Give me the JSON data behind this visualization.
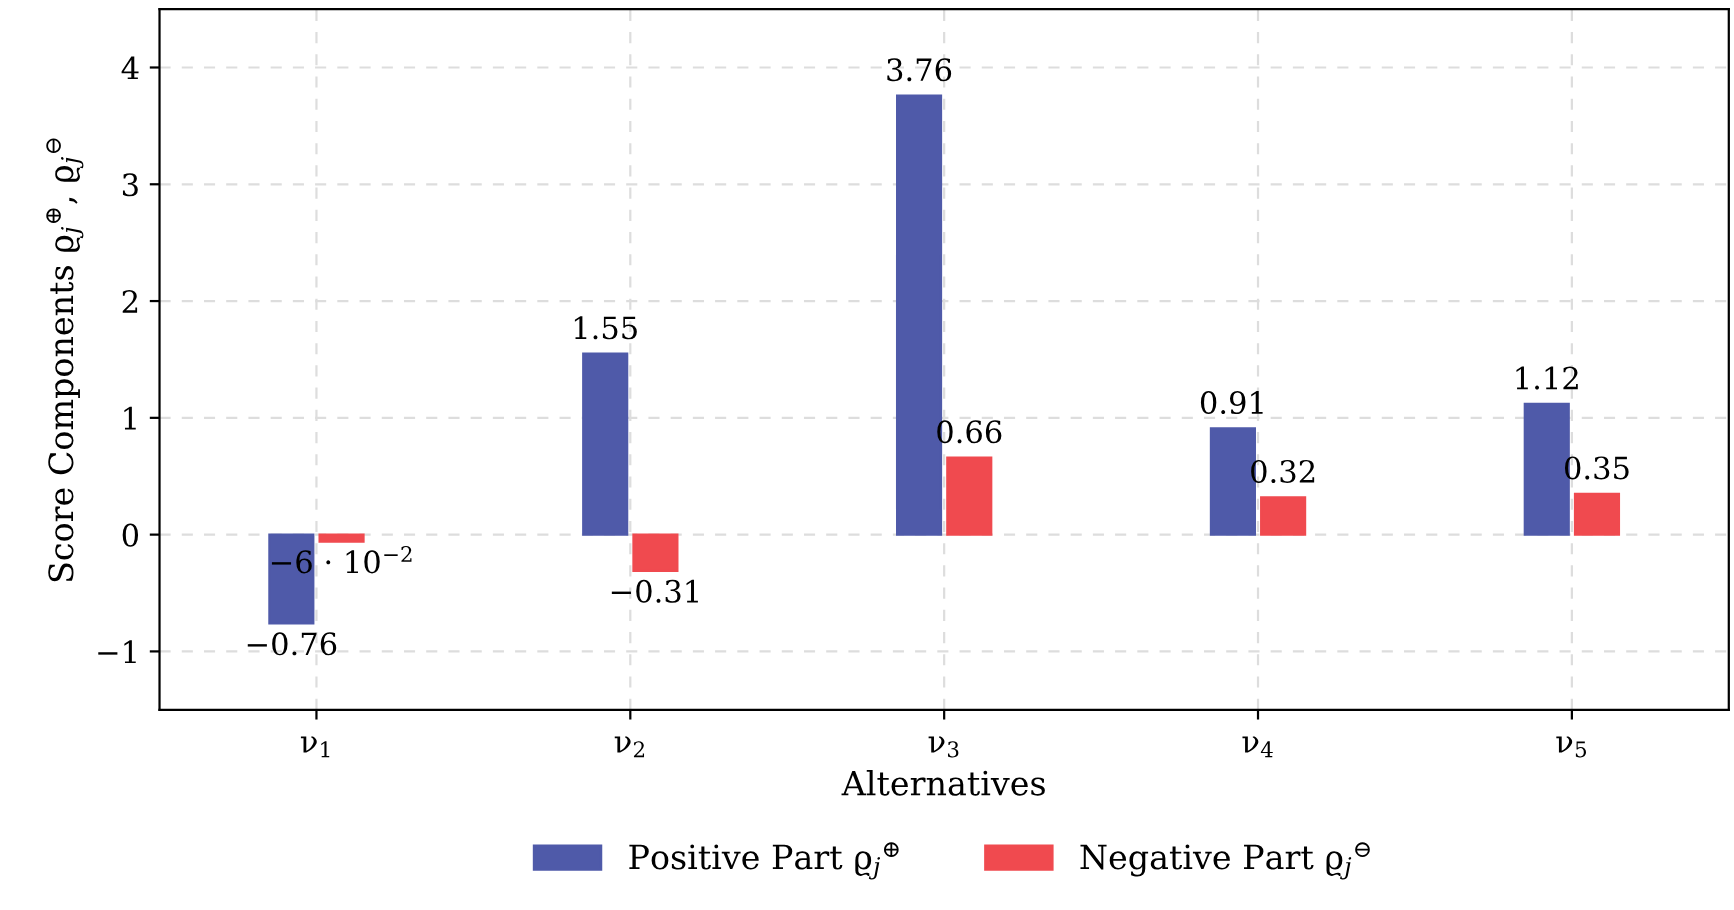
{
  "chart_data": {
    "type": "bar",
    "xlabel": "Alternatives",
    "ylabel": "Score Components ϱ$_{j}$$^{⊕}$, ϱ$_{j}$$^{⊖}$",
    "categories": [
      "ν$_{1}$",
      "ν$_{2}$",
      "ν$_{3}$",
      "ν$_{4}$",
      "ν$_{5}$"
    ],
    "series": [
      {
        "name": "Positive Part ϱ$_{j}$$^{⊕}$",
        "color": "#4f5aa9",
        "values": [
          -0.76,
          1.55,
          3.76,
          0.91,
          1.12
        ],
        "value_labels": [
          "−0.76",
          "1.55",
          "3.76",
          "0.91",
          "1.12"
        ]
      },
      {
        "name": "Negative Part ϱ$_{j}$$^{⊖}$",
        "color": "#f04a4f",
        "values": [
          -0.06,
          -0.31,
          0.66,
          0.32,
          0.35
        ],
        "value_labels": [
          "−6 · 10$^{−2}$",
          "−0.31",
          "0.66",
          "0.32",
          "0.35"
        ]
      }
    ],
    "ylim": [
      -1.5,
      4.5
    ],
    "yticks": [
      {
        "value": -1,
        "label": "−1"
      },
      0,
      1,
      2,
      3,
      4
    ],
    "grid": true,
    "legend": "bottom"
  }
}
